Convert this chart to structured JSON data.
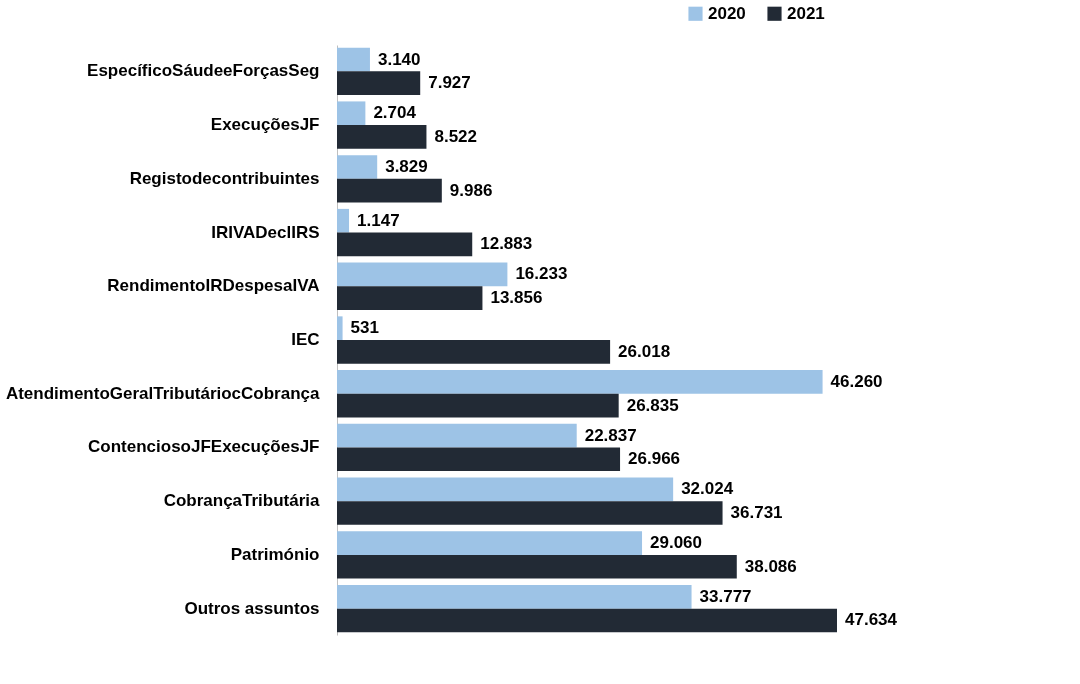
{
  "chart_data": {
    "type": "bar",
    "orientation": "horizontal",
    "legend": "top right",
    "categories": [
      "EspecíficoSáudeeForçasSeg",
      "ExecuçõesJF",
      "Registodecontribuintes",
      "IRIVADeclIRS",
      "RendimentoIRDespesaIVA",
      "IEC",
      "AtendimentoGeralTributáriocCobrança",
      "ContenciosoJFExecuçõesJF",
      "CobrançaTributária",
      "Património",
      "Outros assuntos"
    ],
    "series": [
      {
        "name": "2020",
        "color": "#9dc3e6",
        "values": [
          3140,
          2704,
          3829,
          1147,
          16233,
          531,
          46260,
          22837,
          32024,
          29060,
          33777
        ],
        "value_labels": [
          "3.140",
          "2.704",
          "3.829",
          "1.147",
          "16.233",
          "531",
          "46.260",
          "22.837",
          "32.024",
          "29.060",
          "33.777"
        ]
      },
      {
        "name": "2021",
        "color": "#222a35",
        "values": [
          7927,
          8522,
          9986,
          12883,
          13856,
          26018,
          26835,
          26966,
          36731,
          38086,
          47634
        ],
        "value_labels": [
          "7.927",
          "8.522",
          "9.986",
          "12.883",
          "13.856",
          "26.018",
          "26.835",
          "26.966",
          "36.731",
          "38.086",
          "47.634"
        ]
      }
    ]
  }
}
